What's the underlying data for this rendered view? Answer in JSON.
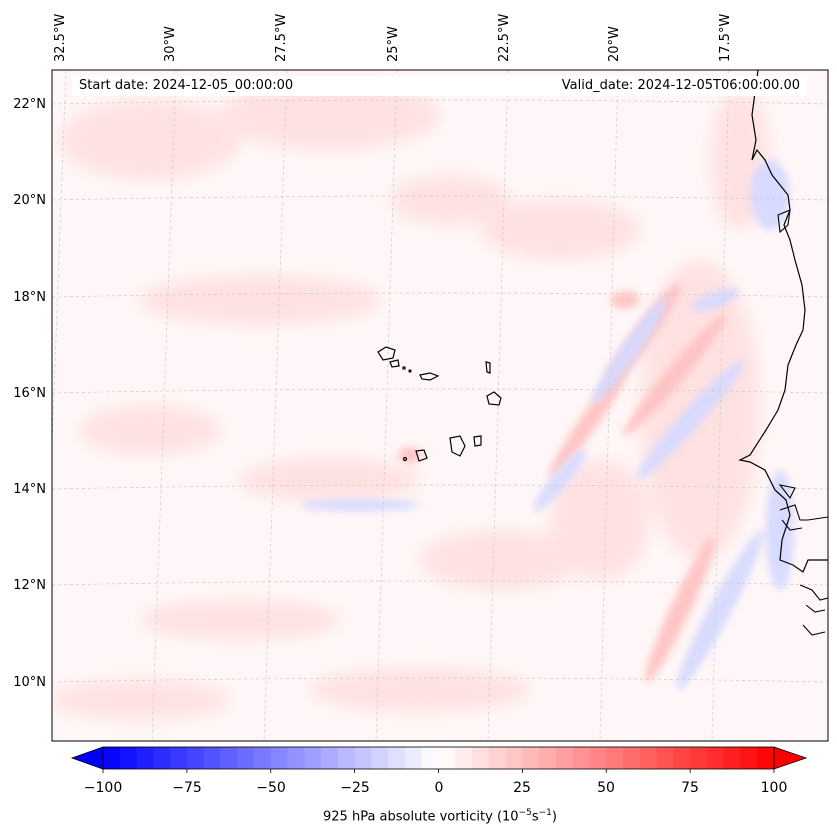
{
  "header": {
    "start_date": "Start date: 2024-12-05_00:00:00",
    "valid_date": "Valid_date: 2024-12-05T06:00:00.00"
  },
  "map": {
    "longitude_labels": [
      "32.5°W",
      "30°W",
      "27.5°W",
      "25°W",
      "22.5°W",
      "20°W",
      "17.5°W"
    ],
    "latitude_labels": [
      "22°N",
      "20°N",
      "18°N",
      "16°N",
      "14°N",
      "12°N",
      "10°N"
    ],
    "gridlines": true,
    "field": "925 hPa absolute vorticity",
    "features": [
      "cape-verde-islands",
      "west-african-coastline"
    ]
  },
  "colorbar": {
    "ticks": [
      "−100",
      "−75",
      "−50",
      "−25",
      "0",
      "25",
      "50",
      "75",
      "100"
    ],
    "min": -100,
    "max": 100,
    "step": 5,
    "label_prefix": "925 hPa absolute vorticity (10",
    "label_exp1": "−5",
    "label_mid": "s",
    "label_exp2": "−1",
    "label_suffix": ")",
    "colormap": "bwr",
    "low_color": "#0000ff",
    "mid_color": "#ffffff",
    "high_color": "#ff0000"
  }
}
